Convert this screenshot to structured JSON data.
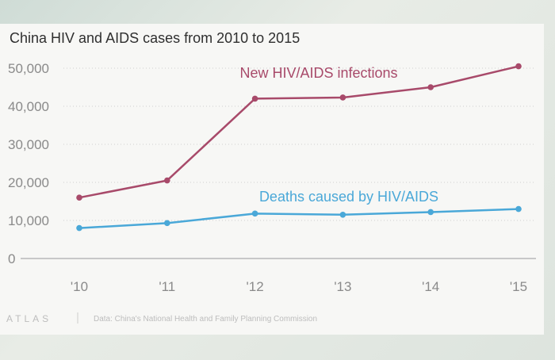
{
  "chart_data": {
    "type": "line",
    "title": "China HIV and AIDS cases from 2010 to 2015",
    "categories": [
      "'10",
      "'11",
      "'12",
      "'13",
      "'14",
      "'15"
    ],
    "series": [
      {
        "name": "New HIV/AIDS infections",
        "color": "#a84a6a",
        "values": [
          16000,
          20500,
          42000,
          42300,
          45000,
          50500
        ]
      },
      {
        "name": "Deaths caused by HIV/AIDS",
        "color": "#4aa8d8",
        "values": [
          8000,
          9300,
          11800,
          11500,
          12200,
          13000
        ]
      }
    ],
    "y_ticks": [
      {
        "value": 0,
        "label": "0"
      },
      {
        "value": 10000,
        "label": "10,000"
      },
      {
        "value": 20000,
        "label": "20,000"
      },
      {
        "value": 30000,
        "label": "30,000"
      },
      {
        "value": 40000,
        "label": "40,000"
      },
      {
        "value": 50000,
        "label": "50,000"
      }
    ],
    "ylim": [
      0,
      50000
    ],
    "grid": "horizontal-dotted",
    "source": "Data: China's National Health and Family Planning Commission",
    "brand": "ATLAS"
  },
  "colors": {
    "axis": "#9a9a9a",
    "grid": "#cfcfcf",
    "text": "#2f2f2f",
    "tick": "#8a8a8a"
  }
}
